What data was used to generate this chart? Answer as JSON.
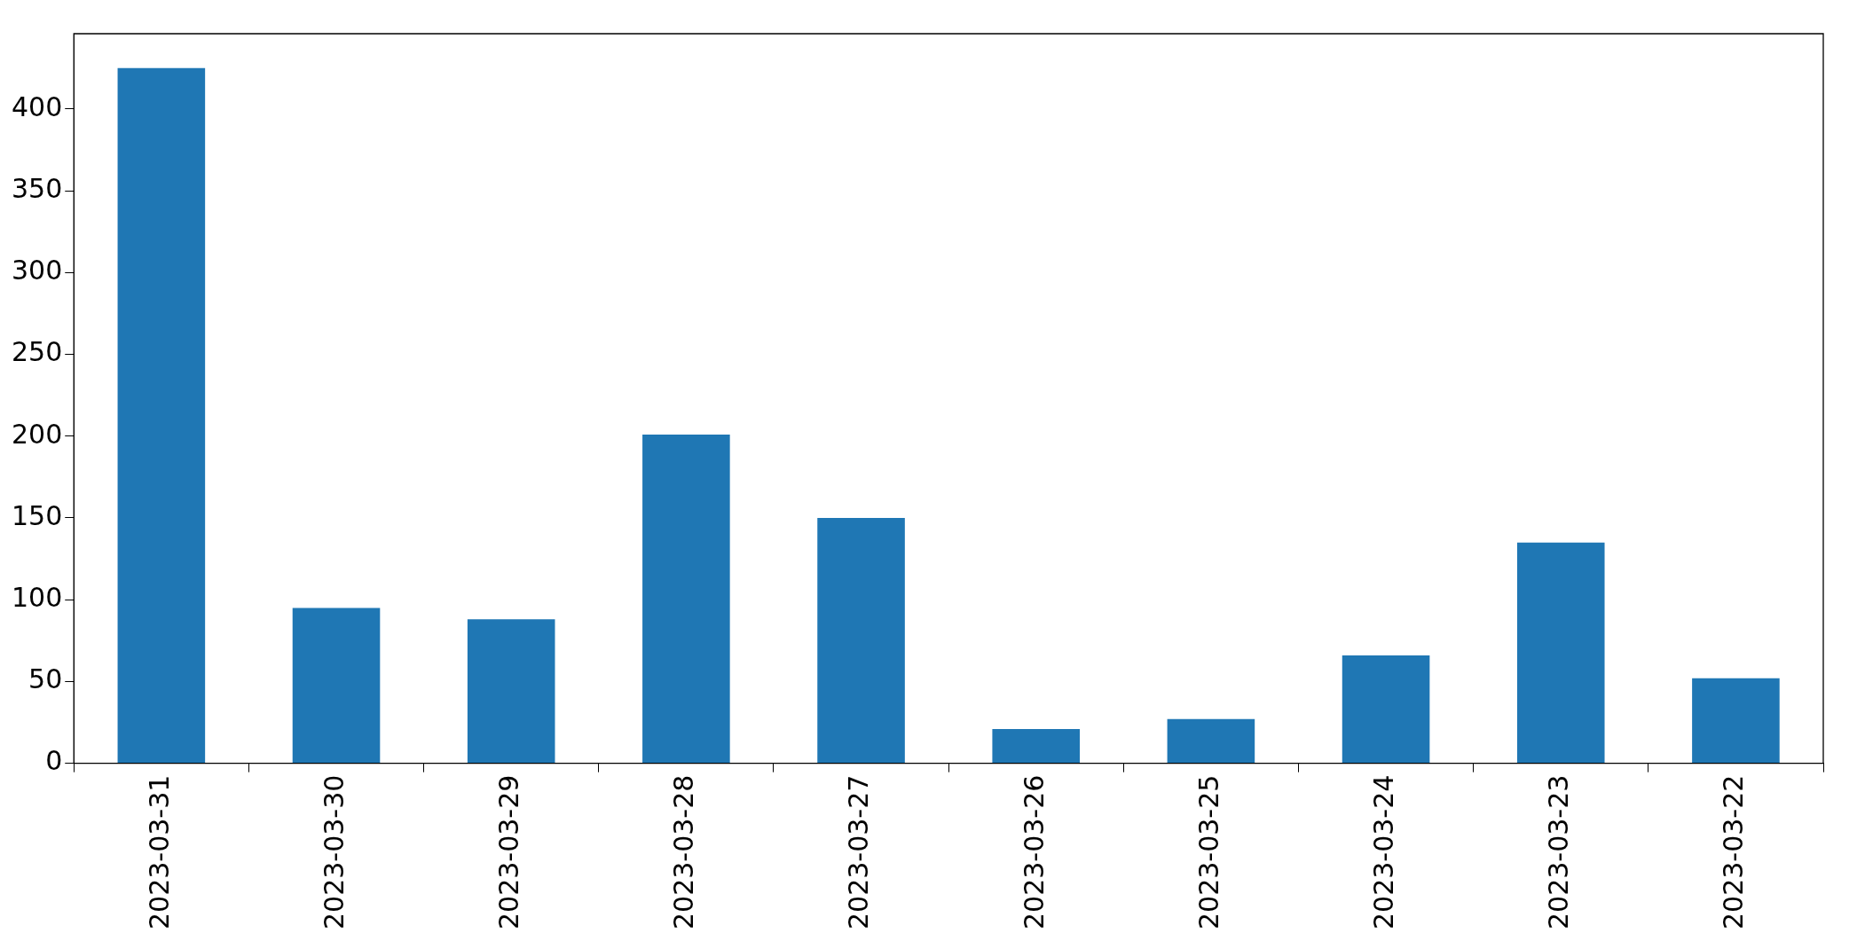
{
  "chart_data": {
    "type": "bar",
    "categories": [
      "2023-03-31",
      "2023-03-30",
      "2023-03-29",
      "2023-03-28",
      "2023-03-27",
      "2023-03-26",
      "2023-03-25",
      "2023-03-24",
      "2023-03-23",
      "2023-03-22"
    ],
    "values": [
      425,
      95,
      88,
      201,
      150,
      21,
      27,
      66,
      135,
      52
    ],
    "color": "#1f77b4",
    "ylim": [
      0,
      446
    ],
    "yticks": [
      0,
      50,
      100,
      150,
      200,
      250,
      300,
      350,
      400
    ],
    "grid": false,
    "legend": false
  }
}
